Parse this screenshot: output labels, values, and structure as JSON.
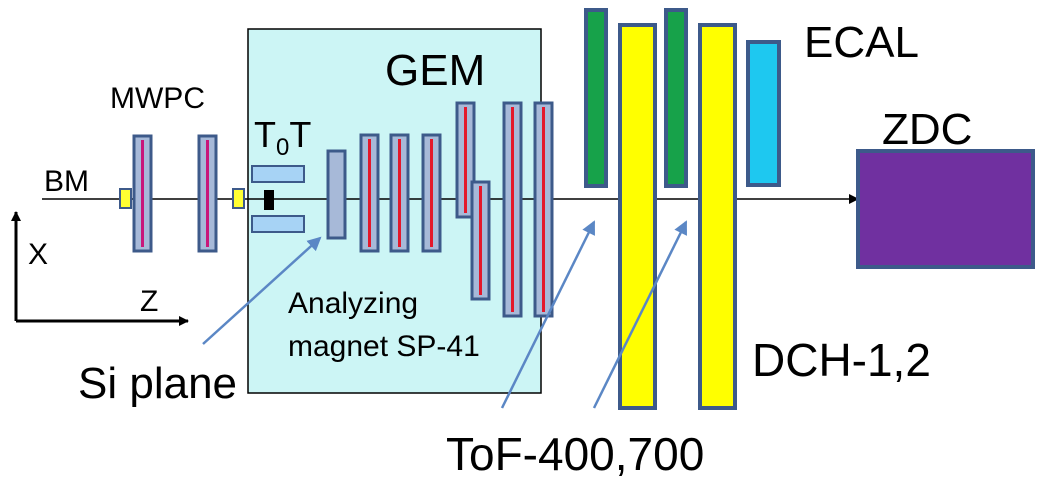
{
  "labels": {
    "ecal": "ECAL",
    "gem": "GEM",
    "mwpc": "MWPC",
    "zdc": "ZDC",
    "t0t_main": "T",
    "t0t_sub": "0",
    "t0t_tail": "T",
    "bm": "BM",
    "axis_x": "X",
    "axis_z": "Z",
    "magnet_line1": "Analyzing",
    "magnet_line2": "magnet SP-41",
    "si_plane": "Si plane",
    "dch": "DCH-1,2",
    "tof": "ToF-400,700"
  },
  "colors": {
    "magnet_fill": "#ccf5f5",
    "frame_blue": "#3d5a8a",
    "chamber_fill": "#a7b9d8",
    "strip_red": "#e4182b",
    "strip_magenta": "#c8177a",
    "tof_green": "#17a24a",
    "dch_yellow": "#ffff00",
    "ecal_cyan": "#1ec8f0",
    "zdc_purple": "#7030a0",
    "si_fill": "#a7d3f5",
    "bm_yellow": "#ffff33",
    "arrow_blue": "#5b87c5"
  }
}
